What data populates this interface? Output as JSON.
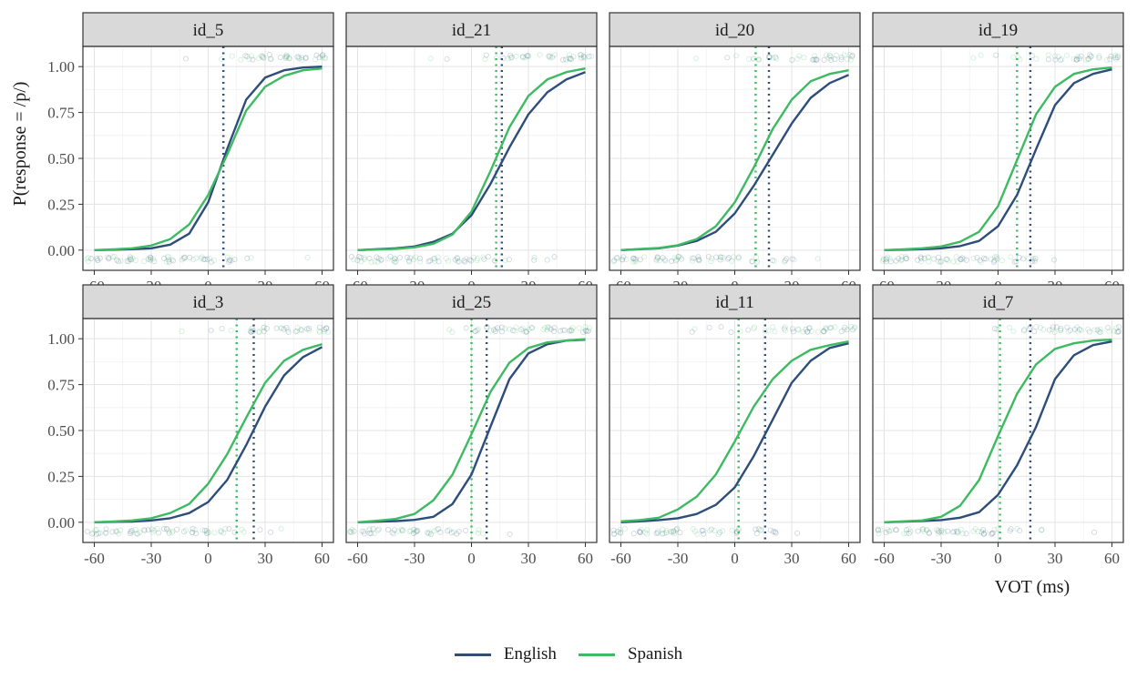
{
  "chart_data": {
    "type": "line",
    "ylabel": "P(response = /p/)",
    "xlabel": "VOT (ms)",
    "x": [
      -60,
      -50,
      -40,
      -30,
      -20,
      -10,
      0,
      10,
      20,
      30,
      40,
      50,
      60
    ],
    "xticks": [
      "-60",
      "-30",
      "0",
      "30",
      "60"
    ],
    "yticks": [
      "0.00",
      "0.25",
      "0.50",
      "0.75",
      "1.00"
    ],
    "xlim": [
      -66,
      66
    ],
    "ylim": [
      -0.11,
      1.11
    ],
    "legend_position": "bottom",
    "colors": {
      "English": "#2e4d7a",
      "Spanish": "#3dba62"
    },
    "series_names": [
      "English",
      "Spanish"
    ],
    "panels": [
      {
        "id": "id_5",
        "boundary": {
          "English": 8,
          "Spanish": 8
        },
        "English": [
          0.0,
          0.002,
          0.005,
          0.01,
          0.03,
          0.09,
          0.26,
          0.55,
          0.82,
          0.94,
          0.98,
          0.995,
          1.0
        ],
        "Spanish": [
          0.0,
          0.004,
          0.01,
          0.025,
          0.06,
          0.14,
          0.3,
          0.52,
          0.76,
          0.89,
          0.95,
          0.98,
          0.99
        ]
      },
      {
        "id": "id_21",
        "boundary": {
          "English": 16,
          "Spanish": 13
        },
        "English": [
          0.0,
          0.005,
          0.01,
          0.02,
          0.045,
          0.09,
          0.19,
          0.36,
          0.56,
          0.74,
          0.86,
          0.93,
          0.97
        ],
        "Spanish": [
          0.0,
          0.003,
          0.007,
          0.015,
          0.035,
          0.085,
          0.21,
          0.43,
          0.67,
          0.84,
          0.93,
          0.97,
          0.99
        ]
      },
      {
        "id": "id_20",
        "boundary": {
          "English": 18,
          "Spanish": 11
        },
        "English": [
          0.0,
          0.005,
          0.01,
          0.025,
          0.05,
          0.1,
          0.2,
          0.35,
          0.52,
          0.69,
          0.83,
          0.91,
          0.955
        ],
        "Spanish": [
          0.0,
          0.006,
          0.012,
          0.027,
          0.06,
          0.13,
          0.26,
          0.45,
          0.66,
          0.82,
          0.92,
          0.96,
          0.98
        ]
      },
      {
        "id": "id_19",
        "boundary": {
          "English": 17,
          "Spanish": 10
        },
        "English": [
          0.0,
          0.002,
          0.005,
          0.01,
          0.022,
          0.05,
          0.13,
          0.3,
          0.55,
          0.79,
          0.91,
          0.96,
          0.985
        ],
        "Spanish": [
          0.0,
          0.004,
          0.01,
          0.02,
          0.045,
          0.1,
          0.24,
          0.49,
          0.74,
          0.89,
          0.96,
          0.985,
          0.995
        ]
      },
      {
        "id": "id_3",
        "boundary": {
          "English": 24,
          "Spanish": 15
        },
        "English": [
          0.0,
          0.002,
          0.004,
          0.01,
          0.022,
          0.05,
          0.11,
          0.23,
          0.42,
          0.63,
          0.8,
          0.9,
          0.955
        ],
        "Spanish": [
          0.0,
          0.004,
          0.01,
          0.022,
          0.05,
          0.1,
          0.21,
          0.37,
          0.57,
          0.76,
          0.88,
          0.94,
          0.97
        ]
      },
      {
        "id": "id_25",
        "boundary": {
          "English": 8,
          "Spanish": 0
        },
        "English": [
          0.0,
          0.003,
          0.006,
          0.013,
          0.03,
          0.1,
          0.26,
          0.52,
          0.78,
          0.92,
          0.97,
          0.99,
          0.995
        ],
        "Spanish": [
          0.0,
          0.008,
          0.018,
          0.045,
          0.12,
          0.26,
          0.48,
          0.71,
          0.87,
          0.95,
          0.98,
          0.99,
          0.998
        ]
      },
      {
        "id": "id_11",
        "boundary": {
          "English": 16,
          "Spanish": 2
        },
        "English": [
          0.0,
          0.005,
          0.012,
          0.022,
          0.045,
          0.095,
          0.19,
          0.36,
          0.56,
          0.76,
          0.88,
          0.95,
          0.975
        ],
        "Spanish": [
          0.005,
          0.012,
          0.025,
          0.07,
          0.14,
          0.26,
          0.44,
          0.63,
          0.78,
          0.88,
          0.94,
          0.965,
          0.985
        ]
      },
      {
        "id": "id_7",
        "boundary": {
          "English": 17,
          "Spanish": 1
        },
        "English": [
          0.0,
          0.003,
          0.007,
          0.012,
          0.025,
          0.055,
          0.15,
          0.31,
          0.52,
          0.78,
          0.91,
          0.965,
          0.985
        ],
        "Spanish": [
          0.0,
          0.005,
          0.01,
          0.03,
          0.09,
          0.23,
          0.47,
          0.7,
          0.86,
          0.945,
          0.975,
          0.99,
          0.995
        ]
      }
    ]
  }
}
